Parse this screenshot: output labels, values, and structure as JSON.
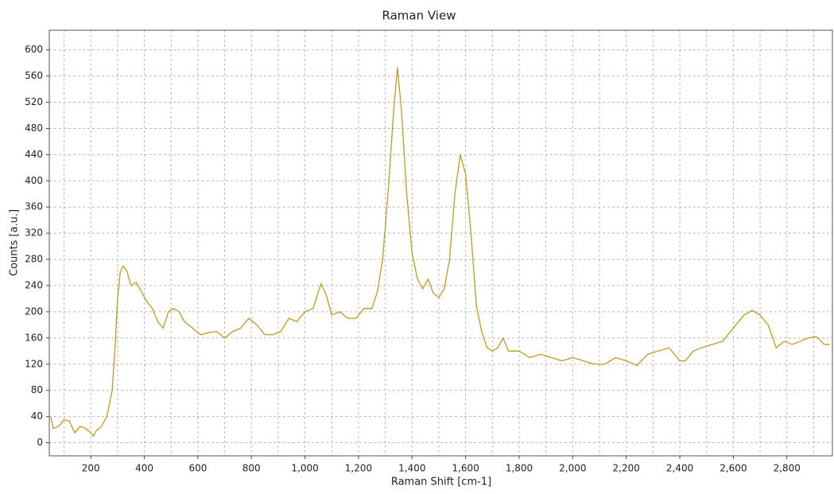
{
  "chart_data": {
    "type": "line",
    "title": "Raman View",
    "x_label": "Raman Shift [cm-1]",
    "y_label": "Counts [a.u.]",
    "xlim": [
      45,
      2970
    ],
    "ylim": [
      -20,
      630
    ],
    "xticks": [
      200,
      400,
      600,
      800,
      {
        "value": 1000,
        "label": "1,000"
      },
      {
        "value": 1200,
        "label": "1,200"
      },
      {
        "value": 1400,
        "label": "1,400"
      },
      {
        "value": 1600,
        "label": "1,600"
      },
      {
        "value": 1800,
        "label": "1,800"
      },
      {
        "value": 2000,
        "label": "2,000"
      },
      {
        "value": 2200,
        "label": "2,200"
      },
      {
        "value": 2400,
        "label": "2,400"
      },
      {
        "value": 2600,
        "label": "2,600"
      },
      {
        "value": 2800,
        "label": "2,800"
      }
    ],
    "xgrid": [
      100,
      300,
      500,
      700,
      900,
      1100,
      1300,
      1500,
      1700,
      1900,
      2100,
      2300,
      2500,
      2700,
      2900
    ],
    "yticks": [
      0,
      40,
      80,
      120,
      160,
      200,
      240,
      280,
      320,
      360,
      400,
      440,
      480,
      520,
      560,
      600
    ],
    "grid": true,
    "series": [
      {
        "color": "#bf9a1e",
        "x": [
          50,
          60,
          80,
          100,
          120,
          140,
          160,
          180,
          200,
          210,
          220,
          240,
          260,
          280,
          290,
          300,
          310,
          320,
          335,
          350,
          370,
          390,
          410,
          430,
          450,
          470,
          490,
          510,
          530,
          550,
          580,
          610,
          640,
          670,
          700,
          730,
          760,
          790,
          820,
          850,
          880,
          910,
          940,
          970,
          1000,
          1030,
          1060,
          1080,
          1100,
          1130,
          1160,
          1190,
          1220,
          1250,
          1270,
          1290,
          1310,
          1330,
          1345,
          1360,
          1380,
          1400,
          1420,
          1440,
          1460,
          1480,
          1500,
          1520,
          1540,
          1560,
          1580,
          1600,
          1620,
          1640,
          1660,
          1680,
          1700,
          1720,
          1740,
          1760,
          1800,
          1840,
          1880,
          1920,
          1960,
          2000,
          2040,
          2080,
          2120,
          2160,
          2200,
          2240,
          2280,
          2320,
          2360,
          2400,
          2420,
          2450,
          2480,
          2520,
          2560,
          2600,
          2640,
          2670,
          2700,
          2730,
          2760,
          2790,
          2820,
          2850,
          2880,
          2910,
          2940,
          2960
        ],
        "values": [
          40,
          22,
          25,
          35,
          33,
          15,
          25,
          22,
          15,
          10,
          18,
          25,
          40,
          80,
          140,
          220,
          260,
          270,
          262,
          240,
          245,
          230,
          215,
          205,
          185,
          175,
          200,
          205,
          200,
          185,
          175,
          165,
          168,
          170,
          160,
          170,
          175,
          190,
          180,
          165,
          165,
          170,
          190,
          185,
          200,
          205,
          243,
          225,
          195,
          200,
          190,
          190,
          205,
          205,
          230,
          280,
          380,
          500,
          573,
          510,
          380,
          290,
          250,
          235,
          250,
          228,
          222,
          235,
          280,
          380,
          440,
          410,
          320,
          210,
          170,
          145,
          140,
          145,
          160,
          140,
          140,
          130,
          135,
          130,
          125,
          130,
          125,
          120,
          120,
          130,
          125,
          118,
          135,
          140,
          145,
          125,
          125,
          140,
          145,
          150,
          155,
          175,
          195,
          202,
          195,
          180,
          145,
          155,
          150,
          155,
          160,
          162,
          150,
          150
        ]
      }
    ]
  }
}
